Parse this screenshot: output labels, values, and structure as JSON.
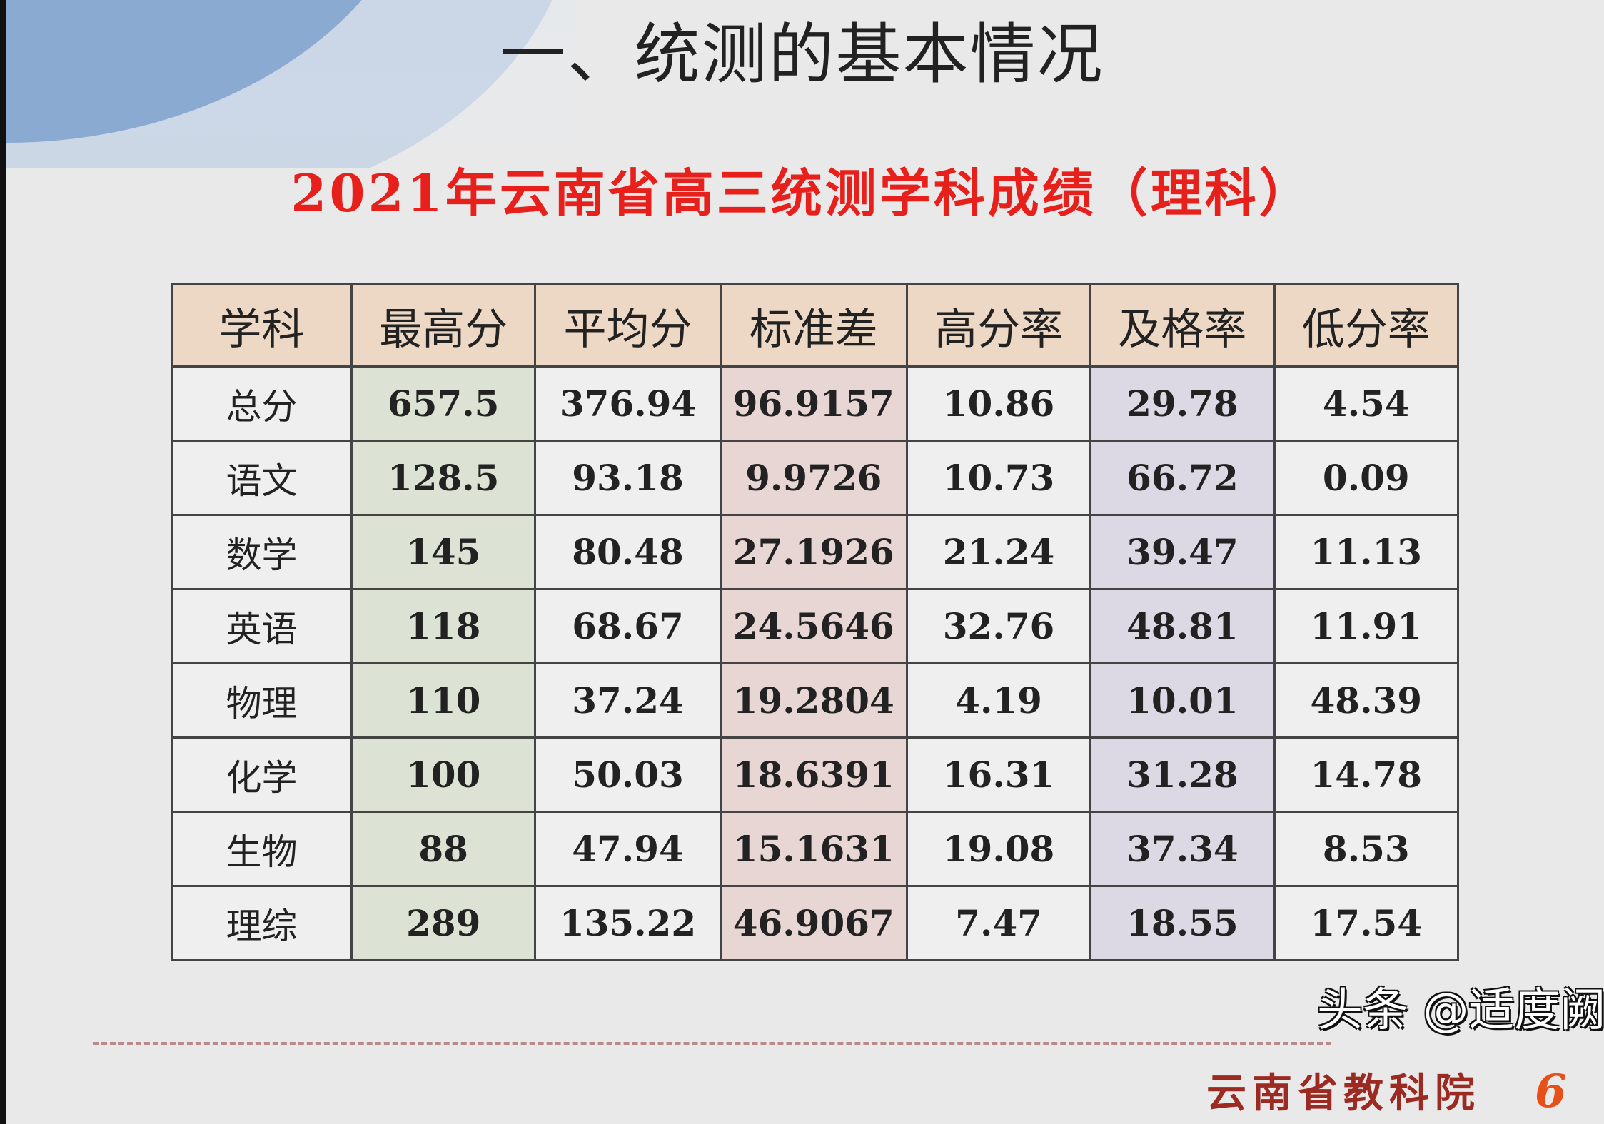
{
  "slide": {
    "title": "一、统测的基本情况",
    "subtitle": "2021年云南省高三统测学科成绩（理科）",
    "footer": "云南省教科院",
    "page_number": "6",
    "watermark": "头条 @适度阙"
  },
  "table": {
    "headers": [
      "学科",
      "最高分",
      "平均分",
      "标准差",
      "高分率",
      "及格率",
      "低分率"
    ],
    "rows": [
      [
        "总分",
        "657.5",
        "376.94",
        "96.9157",
        "10.86",
        "29.78",
        "4.54"
      ],
      [
        "语文",
        "128.5",
        "93.18",
        "9.9726",
        "10.73",
        "66.72",
        "0.09"
      ],
      [
        "数学",
        "145",
        "80.48",
        "27.1926",
        "21.24",
        "39.47",
        "11.13"
      ],
      [
        "英语",
        "118",
        "68.67",
        "24.5646",
        "32.76",
        "48.81",
        "11.91"
      ],
      [
        "物理",
        "110",
        "37.24",
        "19.2804",
        "4.19",
        "10.01",
        "48.39"
      ],
      [
        "化学",
        "100",
        "50.03",
        "18.6391",
        "16.31",
        "31.28",
        "14.78"
      ],
      [
        "生物",
        "88",
        "47.94",
        "15.1631",
        "19.08",
        "37.34",
        "8.53"
      ],
      [
        "理综",
        "289",
        "135.22",
        "46.9067",
        "7.47",
        "18.55",
        "17.54"
      ]
    ]
  },
  "colors": {
    "title_red": "#e8201c",
    "header_bg": "#ecd8c4",
    "col_max_bg": "#dde3d4",
    "col_std_bg": "#e8d6d5",
    "col_pass_bg": "#dcd9e4"
  }
}
